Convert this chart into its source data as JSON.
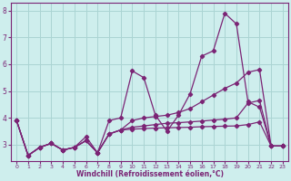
{
  "xlabel": "Windchill (Refroidissement éolien,°C)",
  "background_color": "#ceeeed",
  "grid_color": "#aad4d3",
  "line_color": "#7b2475",
  "marker": "D",
  "markersize": 2.2,
  "linewidth": 0.9,
  "xlim": [
    -0.5,
    23.5
  ],
  "ylim": [
    2.4,
    8.3
  ],
  "yticks": [
    3,
    4,
    5,
    6,
    7,
    8
  ],
  "xticks": [
    0,
    1,
    2,
    3,
    4,
    5,
    6,
    7,
    8,
    9,
    10,
    11,
    12,
    13,
    14,
    15,
    16,
    17,
    18,
    19,
    20,
    21,
    22,
    23
  ],
  "series": [
    [
      3.9,
      2.6,
      2.9,
      3.05,
      2.8,
      2.9,
      3.3,
      2.7,
      3.9,
      4.0,
      5.75,
      5.5,
      4.1,
      3.5,
      4.1,
      4.9,
      6.3,
      6.5,
      7.9,
      7.5,
      4.6,
      4.4,
      2.95,
      2.95
    ],
    [
      3.9,
      2.6,
      2.9,
      3.05,
      2.8,
      2.9,
      3.15,
      2.7,
      3.4,
      3.55,
      3.9,
      4.0,
      4.05,
      4.1,
      4.2,
      4.35,
      4.6,
      4.85,
      5.1,
      5.3,
      5.7,
      5.8,
      2.95,
      2.95
    ],
    [
      3.9,
      2.6,
      2.9,
      3.05,
      2.8,
      2.9,
      3.15,
      2.7,
      3.4,
      3.55,
      3.65,
      3.7,
      3.75,
      3.8,
      3.82,
      3.85,
      3.88,
      3.92,
      3.95,
      4.0,
      4.55,
      4.65,
      2.95,
      2.95
    ],
    [
      3.9,
      2.6,
      2.9,
      3.05,
      2.8,
      2.9,
      3.15,
      2.7,
      3.4,
      3.55,
      3.58,
      3.6,
      3.62,
      3.63,
      3.64,
      3.65,
      3.67,
      3.68,
      3.69,
      3.7,
      3.75,
      3.85,
      2.95,
      2.95
    ]
  ]
}
